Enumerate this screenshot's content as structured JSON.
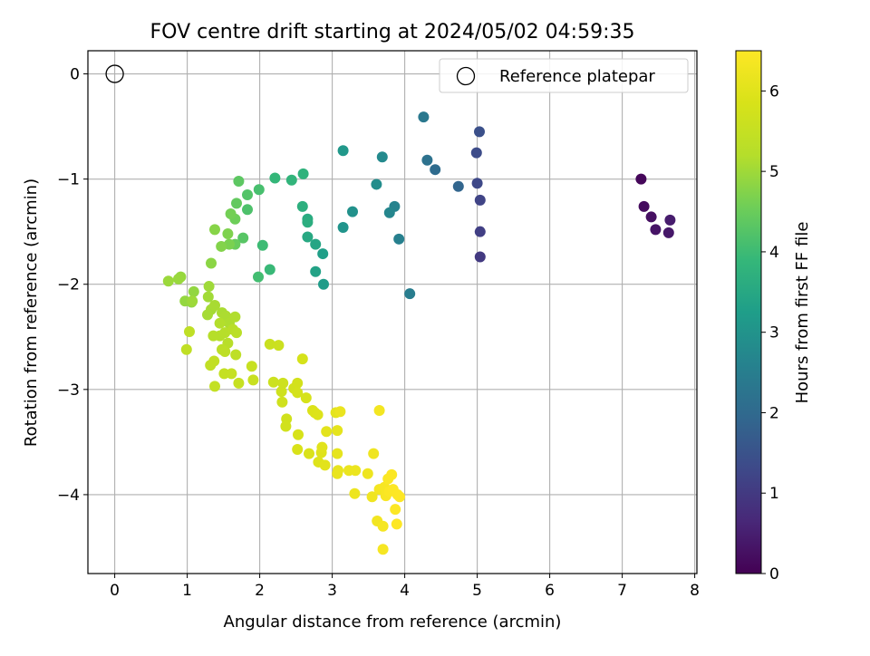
{
  "chart_data": {
    "type": "scatter",
    "title": "FOV centre drift starting at 2024/05/02 04:59:35",
    "xlabel": "Angular distance from reference (arcmin)",
    "ylabel": "Rotation from reference (arcmin)",
    "xlim": [
      -0.37,
      8.03
    ],
    "ylim": [
      -4.75,
      0.22
    ],
    "xticks": [
      0,
      1,
      2,
      3,
      4,
      5,
      6,
      7,
      8
    ],
    "yticks": [
      0,
      -1,
      -2,
      -3,
      -4
    ],
    "grid": true,
    "legend": {
      "placement": "top-right",
      "entries": [
        "Reference platepar"
      ]
    },
    "reference_point": {
      "x": 0,
      "y": 0
    },
    "colorbar": {
      "label": "Hours from first FF file",
      "range": [
        0,
        6.5
      ],
      "ticks": [
        0,
        1,
        2,
        3,
        4,
        5,
        6
      ],
      "colormap": "viridis"
    },
    "points": [
      [
        7.26,
        -1.0,
        0.1
      ],
      [
        7.3,
        -1.26,
        0.18
      ],
      [
        7.4,
        -1.36,
        0.25
      ],
      [
        7.46,
        -1.48,
        0.32
      ],
      [
        7.64,
        -1.51,
        0.38
      ],
      [
        7.66,
        -1.39,
        0.45
      ],
      [
        5.04,
        -1.74,
        1.0
      ],
      [
        5.04,
        -1.5,
        1.1
      ],
      [
        5.04,
        -1.2,
        1.2
      ],
      [
        5.0,
        -1.04,
        1.28
      ],
      [
        4.99,
        -0.75,
        1.36
      ],
      [
        5.03,
        -0.55,
        1.45
      ],
      [
        4.74,
        -1.07,
        1.9
      ],
      [
        4.42,
        -0.91,
        2.05
      ],
      [
        4.31,
        -0.82,
        2.2
      ],
      [
        4.26,
        -0.41,
        2.35
      ],
      [
        4.07,
        -2.09,
        2.48
      ],
      [
        3.92,
        -1.57,
        2.55
      ],
      [
        3.86,
        -1.26,
        2.62
      ],
      [
        3.79,
        -1.32,
        2.7
      ],
      [
        3.69,
        -0.79,
        2.78
      ],
      [
        3.61,
        -1.05,
        2.86
      ],
      [
        3.28,
        -1.31,
        2.95
      ],
      [
        3.15,
        -1.46,
        3.02
      ],
      [
        3.15,
        -0.73,
        3.1
      ],
      [
        2.88,
        -2.0,
        3.2
      ],
      [
        2.87,
        -1.71,
        3.28
      ],
      [
        2.77,
        -1.88,
        3.36
      ],
      [
        2.77,
        -1.62,
        3.44
      ],
      [
        2.66,
        -1.55,
        3.52
      ],
      [
        2.66,
        -1.38,
        3.58
      ],
      [
        2.66,
        -1.41,
        3.64
      ],
      [
        2.59,
        -1.26,
        3.7
      ],
      [
        2.6,
        -0.95,
        3.76
      ],
      [
        2.44,
        -1.01,
        3.82
      ],
      [
        2.21,
        -0.99,
        3.88
      ],
      [
        2.14,
        -1.86,
        3.94
      ],
      [
        2.04,
        -1.63,
        4.0
      ],
      [
        1.98,
        -1.93,
        4.06
      ],
      [
        1.99,
        -1.1,
        4.12
      ],
      [
        1.83,
        -1.29,
        4.18
      ],
      [
        1.83,
        -1.15,
        4.24
      ],
      [
        1.77,
        -1.56,
        4.3
      ],
      [
        1.71,
        -1.02,
        4.36
      ],
      [
        1.68,
        -1.23,
        4.42
      ],
      [
        1.66,
        -1.62,
        4.48
      ],
      [
        1.66,
        -1.38,
        4.54
      ],
      [
        1.6,
        -1.33,
        4.6
      ],
      [
        1.58,
        -1.62,
        4.66
      ],
      [
        1.56,
        -1.52,
        4.7
      ],
      [
        1.47,
        -1.64,
        4.74
      ],
      [
        1.38,
        -1.48,
        4.78
      ],
      [
        1.33,
        -1.8,
        4.82
      ],
      [
        1.06,
        -2.17,
        4.86
      ],
      [
        1.09,
        -2.07,
        4.88
      ],
      [
        0.97,
        -2.16,
        4.9
      ],
      [
        0.91,
        -1.93,
        4.92
      ],
      [
        0.88,
        -1.95,
        4.94
      ],
      [
        0.74,
        -1.97,
        4.96
      ],
      [
        1.07,
        -2.16,
        4.98
      ],
      [
        1.3,
        -2.02,
        5.0
      ],
      [
        1.29,
        -2.12,
        5.02
      ],
      [
        1.33,
        -2.24,
        5.04
      ],
      [
        1.28,
        -2.29,
        5.06
      ],
      [
        1.38,
        -2.2,
        5.08
      ],
      [
        1.48,
        -2.27,
        5.1
      ],
      [
        1.53,
        -2.3,
        5.12
      ],
      [
        1.58,
        -2.37,
        5.14
      ],
      [
        1.66,
        -2.31,
        5.16
      ],
      [
        1.45,
        -2.37,
        5.18
      ],
      [
        1.45,
        -2.49,
        5.2
      ],
      [
        1.36,
        -2.49,
        5.22
      ],
      [
        1.52,
        -2.46,
        5.24
      ],
      [
        1.56,
        -2.56,
        5.26
      ],
      [
        1.63,
        -2.43,
        5.28
      ],
      [
        1.68,
        -2.46,
        5.3
      ],
      [
        1.48,
        -2.62,
        5.32
      ],
      [
        1.52,
        -2.64,
        5.34
      ],
      [
        1.67,
        -2.67,
        5.36
      ],
      [
        1.03,
        -2.45,
        5.38
      ],
      [
        0.99,
        -2.62,
        5.4
      ],
      [
        1.32,
        -2.77,
        5.42
      ],
      [
        1.37,
        -2.73,
        5.44
      ],
      [
        1.38,
        -2.97,
        5.46
      ],
      [
        1.51,
        -2.85,
        5.48
      ],
      [
        1.61,
        -2.85,
        5.5
      ],
      [
        1.71,
        -2.94,
        5.52
      ],
      [
        1.89,
        -2.78,
        5.54
      ],
      [
        1.91,
        -2.91,
        5.56
      ],
      [
        2.14,
        -2.57,
        5.58
      ],
      [
        2.26,
        -2.58,
        5.6
      ],
      [
        2.19,
        -2.93,
        5.62
      ],
      [
        2.32,
        -2.94,
        5.64
      ],
      [
        2.3,
        -3.02,
        5.66
      ],
      [
        2.31,
        -3.12,
        5.68
      ],
      [
        2.37,
        -3.28,
        5.7
      ],
      [
        2.36,
        -3.35,
        5.72
      ],
      [
        2.47,
        -2.99,
        5.74
      ],
      [
        2.52,
        -2.94,
        5.76
      ],
      [
        2.52,
        -3.03,
        5.78
      ],
      [
        2.59,
        -2.71,
        5.8
      ],
      [
        2.64,
        -3.08,
        5.82
      ],
      [
        2.53,
        -3.43,
        5.84
      ],
      [
        2.52,
        -3.57,
        5.86
      ],
      [
        2.68,
        -3.61,
        5.88
      ],
      [
        2.73,
        -3.2,
        5.9
      ],
      [
        2.76,
        -3.22,
        5.92
      ],
      [
        2.8,
        -3.24,
        5.94
      ],
      [
        2.81,
        -3.69,
        5.96
      ],
      [
        2.85,
        -3.6,
        5.98
      ],
      [
        2.86,
        -3.55,
        6.0
      ],
      [
        2.9,
        -3.72,
        6.02
      ],
      [
        2.92,
        -3.4,
        6.04
      ],
      [
        3.05,
        -3.22,
        6.06
      ],
      [
        3.07,
        -3.39,
        6.08
      ],
      [
        3.07,
        -3.61,
        6.1
      ],
      [
        3.08,
        -3.77,
        6.12
      ],
      [
        3.07,
        -3.8,
        6.14
      ],
      [
        3.11,
        -3.21,
        6.16
      ],
      [
        3.23,
        -3.77,
        6.18
      ],
      [
        3.32,
        -3.77,
        6.2
      ],
      [
        3.31,
        -3.99,
        6.22
      ],
      [
        3.49,
        -3.8,
        6.24
      ],
      [
        3.57,
        -3.61,
        6.26
      ],
      [
        3.55,
        -4.02,
        6.28
      ],
      [
        3.62,
        -4.25,
        6.3
      ],
      [
        3.65,
        -3.2,
        6.32
      ],
      [
        3.65,
        -3.95,
        6.34
      ],
      [
        3.7,
        -4.3,
        6.36
      ],
      [
        3.7,
        -4.52,
        6.38
      ],
      [
        3.72,
        -3.93,
        6.4
      ],
      [
        3.74,
        -4.01,
        6.42
      ],
      [
        3.77,
        -3.85,
        6.44
      ],
      [
        3.79,
        -3.97,
        6.46
      ],
      [
        3.82,
        -3.81,
        6.47
      ],
      [
        3.84,
        -3.95,
        6.48
      ],
      [
        3.87,
        -4.14,
        6.49
      ],
      [
        3.89,
        -4.28,
        6.5
      ],
      [
        3.9,
        -4.0,
        6.5
      ],
      [
        3.93,
        -4.02,
        6.5
      ]
    ]
  }
}
